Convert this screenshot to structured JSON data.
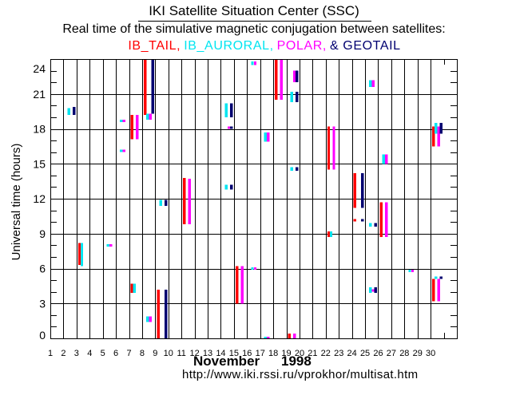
{
  "chart_data": {
    "type": "bar",
    "bar_style": "floating time ranges per day",
    "title": "IKI Satellite Situation Center (SSC)",
    "subtitle": "Real time of the simulative magnetic conjugation between satellites:",
    "legend": [
      {
        "text": "IB_TAIL,",
        "color": "#ff0000"
      },
      {
        "text": "IB_AURORAL,",
        "color": "#00e5f0"
      },
      {
        "text": "POLAR,",
        "color": "#ff00ff"
      },
      {
        "text": "& GEOTAIL",
        "color": "#000070"
      }
    ],
    "legend_placement": "top",
    "xlabel_month": "November",
    "xlabel_year": "1998",
    "ylabel": "Universal time (hours)",
    "xlim": [
      1,
      32
    ],
    "ylim": [
      0,
      24
    ],
    "xticks": [
      1,
      2,
      3,
      4,
      5,
      6,
      7,
      8,
      9,
      10,
      11,
      12,
      13,
      14,
      15,
      16,
      17,
      18,
      19,
      20,
      21,
      22,
      23,
      24,
      25,
      26,
      27,
      28,
      29,
      30
    ],
    "yticks": [
      0,
      3,
      6,
      9,
      12,
      15,
      18,
      21,
      24
    ],
    "grid": true,
    "interval_format": [
      "day",
      "start_hour_UT",
      "end_hour_UT"
    ],
    "series": [
      {
        "name": "IB_TAIL",
        "color": "#ff0000",
        "intervals": [
          [
            3,
            6.3,
            8.2
          ],
          [
            7,
            3.9,
            4.7
          ],
          [
            7,
            17.1,
            19.2
          ],
          [
            8,
            19.2,
            24
          ],
          [
            9,
            0,
            4.2
          ],
          [
            11,
            9.8,
            13.8
          ],
          [
            15,
            3.0,
            6.2
          ],
          [
            18,
            20.5,
            24
          ],
          [
            19,
            0,
            0.4
          ],
          [
            22,
            8.7,
            9.2
          ],
          [
            22,
            14.5,
            18.2
          ],
          [
            24,
            10.1,
            10.2
          ],
          [
            24,
            11.2,
            14.2
          ],
          [
            26,
            8.7,
            11.7
          ],
          [
            30,
            3.2,
            5.1
          ],
          [
            30,
            16.5,
            18.2
          ]
        ]
      },
      {
        "name": "IB_AURORAL",
        "color": "#00e5f0",
        "intervals": [
          [
            2,
            19.2,
            19.8
          ],
          [
            3,
            6.2,
            8.2
          ],
          [
            5,
            7.9,
            8.1
          ],
          [
            6,
            16.0,
            16.2
          ],
          [
            6,
            18.6,
            18.8
          ],
          [
            7,
            3.9,
            4.7
          ],
          [
            8,
            1.4,
            1.9
          ],
          [
            8,
            18.8,
            19.3
          ],
          [
            9,
            11.4,
            11.9
          ],
          [
            14,
            12.8,
            13.2
          ],
          [
            14,
            19.0,
            20.2
          ],
          [
            16,
            5.9,
            6.1
          ],
          [
            16,
            23.5,
            23.8
          ],
          [
            17,
            0.0,
            0.1
          ],
          [
            17,
            16.9,
            17.7
          ],
          [
            19,
            14.4,
            14.7
          ],
          [
            19,
            20.3,
            21.2
          ],
          [
            22,
            8.7,
            9.2
          ],
          [
            25,
            3.9,
            4.4
          ],
          [
            25,
            9.6,
            9.9
          ],
          [
            25,
            21.6,
            22.2
          ],
          [
            26,
            15.0,
            15.8
          ],
          [
            28,
            5.7,
            5.9
          ],
          [
            30,
            5.1,
            5.3
          ],
          [
            30,
            17.6,
            18.5
          ]
        ]
      },
      {
        "name": "POLAR",
        "color": "#ff00ff",
        "intervals": [
          [
            5,
            7.9,
            8.1
          ],
          [
            6,
            16.0,
            16.2
          ],
          [
            6,
            18.6,
            18.8
          ],
          [
            7,
            17.1,
            19.2
          ],
          [
            8,
            1.4,
            1.9
          ],
          [
            8,
            18.8,
            19.3
          ],
          [
            11,
            9.8,
            13.7
          ],
          [
            14,
            18.0,
            18.2
          ],
          [
            15,
            3.0,
            6.2
          ],
          [
            16,
            5.9,
            6.1
          ],
          [
            16,
            23.5,
            23.8
          ],
          [
            17,
            0.0,
            0.1
          ],
          [
            17,
            16.9,
            17.7
          ],
          [
            18,
            20.5,
            24
          ],
          [
            19,
            0,
            0.4
          ],
          [
            19,
            22.0,
            23.0
          ],
          [
            22,
            14.5,
            18.2
          ],
          [
            25,
            4.0,
            4.2
          ],
          [
            25,
            21.6,
            22.2
          ],
          [
            26,
            8.7,
            11.7
          ],
          [
            26,
            15.0,
            15.8
          ],
          [
            28,
            5.7,
            5.9
          ],
          [
            30,
            3.2,
            5.1
          ],
          [
            30,
            16.5,
            18.2
          ]
        ]
      },
      {
        "name": "GEOTAIL",
        "color": "#000070",
        "intervals": [
          [
            2,
            19.2,
            19.9
          ],
          [
            8,
            19.3,
            24
          ],
          [
            9,
            0,
            4.2
          ],
          [
            9,
            11.4,
            11.9
          ],
          [
            14,
            12.8,
            13.2
          ],
          [
            14,
            18.0,
            18.2
          ],
          [
            14,
            19.0,
            20.2
          ],
          [
            19,
            14.4,
            14.7
          ],
          [
            19,
            20.3,
            21.2
          ],
          [
            19,
            22.0,
            23.0
          ],
          [
            24,
            10.1,
            10.2
          ],
          [
            24,
            11.2,
            14.2
          ],
          [
            25,
            3.9,
            4.4
          ],
          [
            25,
            9.6,
            9.9
          ],
          [
            30,
            5.1,
            5.3
          ],
          [
            30,
            17.6,
            18.5
          ]
        ]
      }
    ]
  },
  "footer": {
    "url": "http://www.iki.rssi.ru/vprokhor/multisat.htm"
  }
}
